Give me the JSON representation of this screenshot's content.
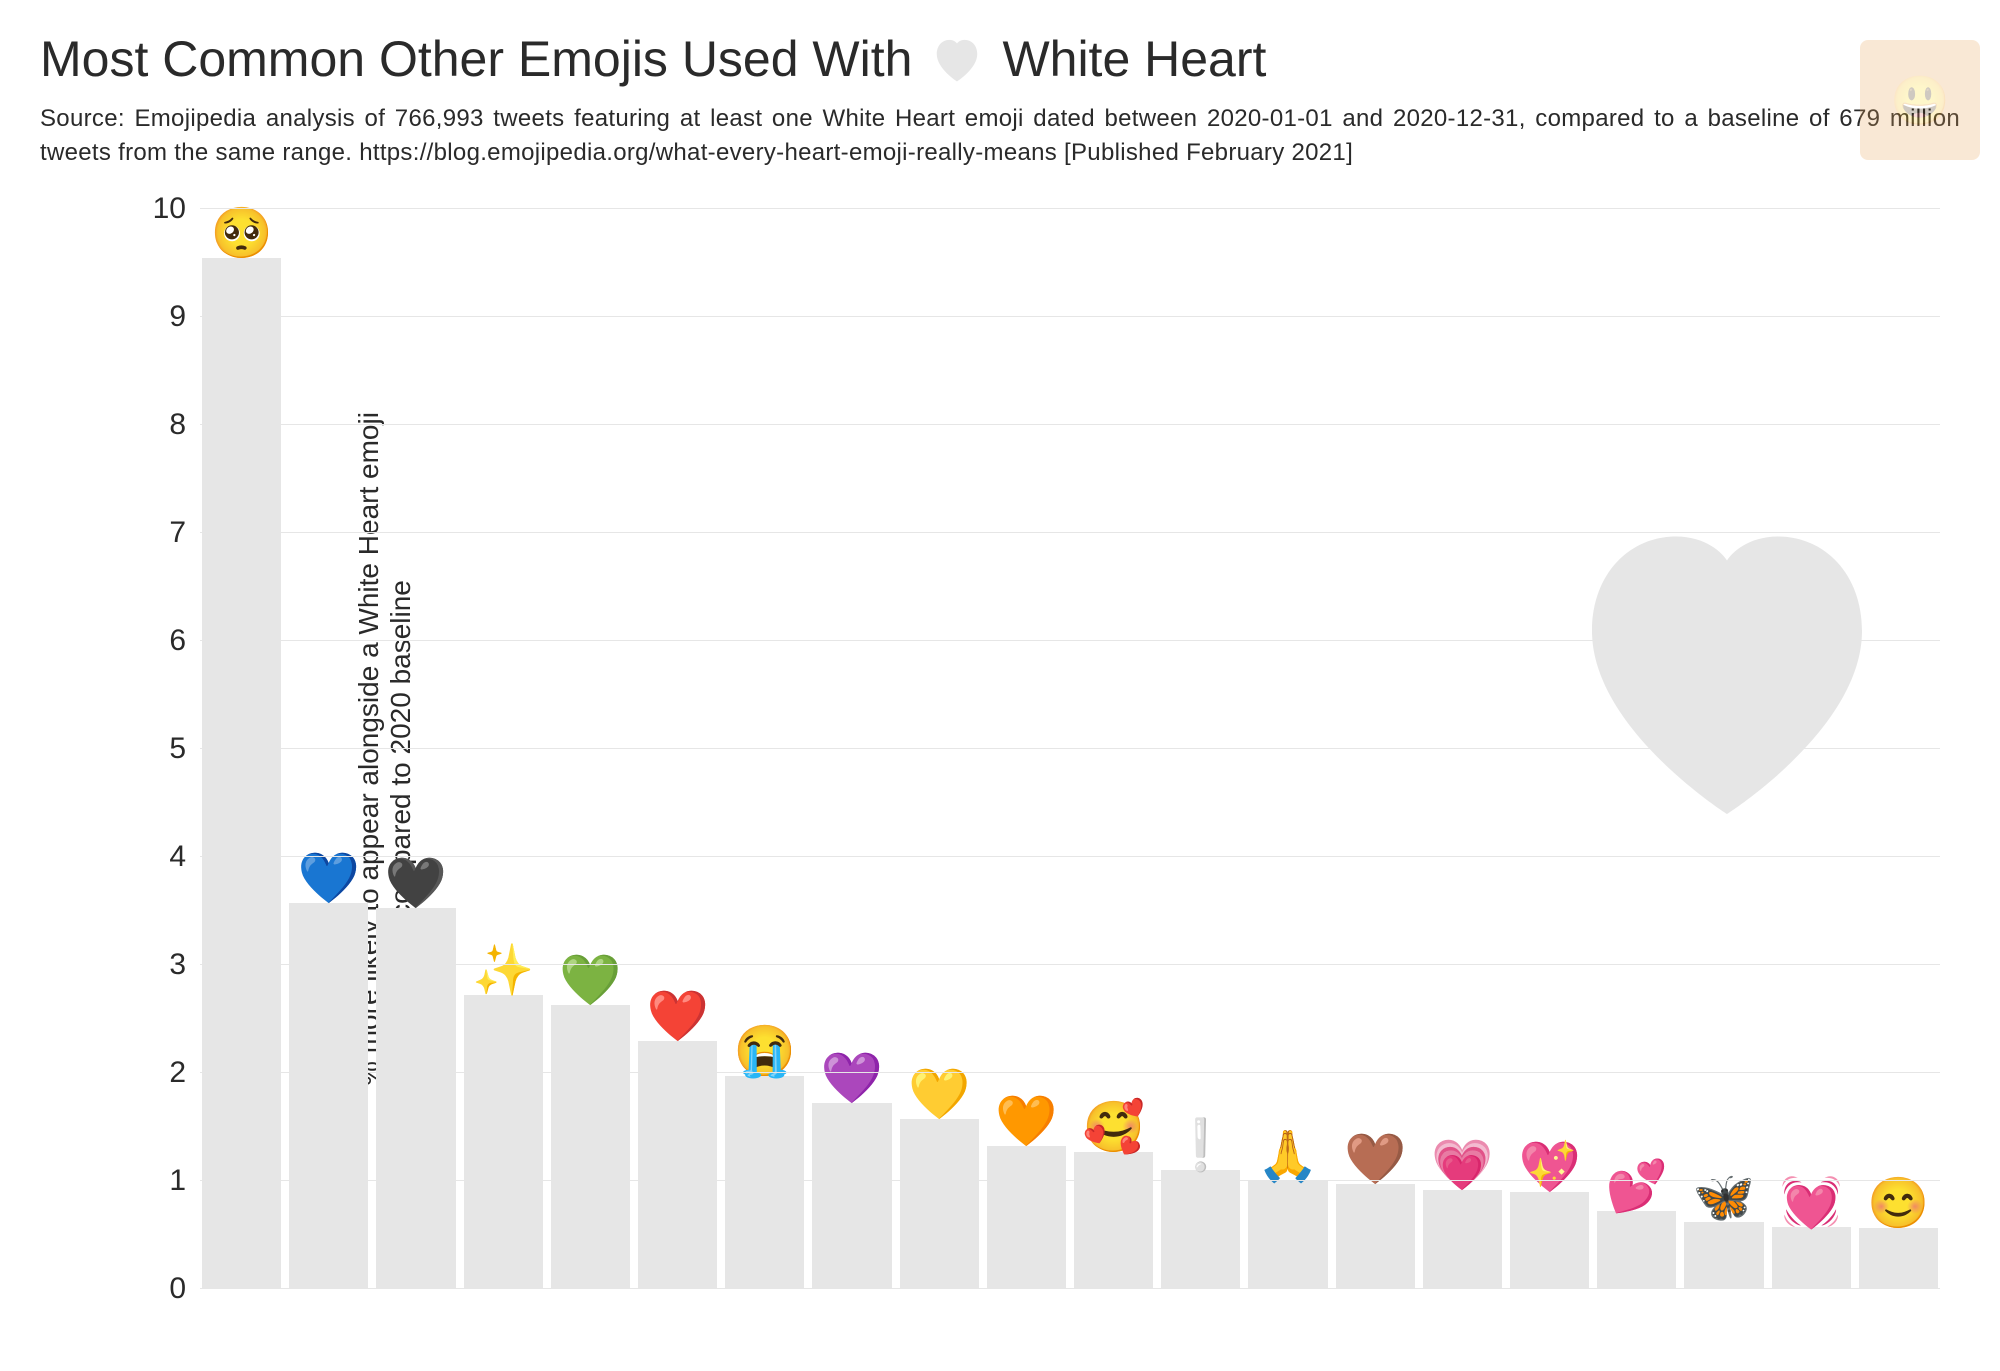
{
  "title_pre": "Most Common Other Emojis Used With",
  "title_post": "White Heart",
  "title_heart_color": "#e6e6e6",
  "source": "Source: Emojipedia analysis of 766,993 tweets featuring at least one White Heart emoji dated between 2020-01-01 and 2020-12-31, compared to a baseline of 679 million tweets from the same range. https://blog.emojipedia.org/what-every-heart-emoji-really-means [Published February 2021]",
  "y_axis_label": "% more likely to appear alongside a White Heart emoji\ncompared to 2020 baseline",
  "chart": {
    "type": "bar",
    "ylim": [
      0,
      10
    ],
    "ytick_step": 1,
    "yticks": [
      0,
      1,
      2,
      3,
      4,
      5,
      6,
      7,
      8,
      9,
      10
    ],
    "bar_color": "#e6e6e6",
    "grid_color": "#e6e6e6",
    "background_color": "#ffffff",
    "tick_fontsize": 30,
    "axis_label_fontsize": 28,
    "emoji_fontsize": 50,
    "title_fontsize": 50,
    "source_fontsize": 24,
    "bars": [
      {
        "emoji": "🥺",
        "value": 9.55,
        "name": "pleading-face"
      },
      {
        "emoji": "💙",
        "value": 3.58,
        "name": "blue-heart"
      },
      {
        "emoji": "🖤",
        "value": 3.53,
        "name": "black-heart"
      },
      {
        "emoji": "✨",
        "value": 2.72,
        "name": "sparkles"
      },
      {
        "emoji": "💚",
        "value": 2.63,
        "name": "green-heart"
      },
      {
        "emoji": "❤️",
        "value": 2.3,
        "name": "red-heart"
      },
      {
        "emoji": "😭",
        "value": 1.97,
        "name": "loudly-crying-face"
      },
      {
        "emoji": "💜",
        "value": 1.72,
        "name": "purple-heart"
      },
      {
        "emoji": "💛",
        "value": 1.58,
        "name": "yellow-heart"
      },
      {
        "emoji": "🧡",
        "value": 1.33,
        "name": "orange-heart"
      },
      {
        "emoji": "🥰",
        "value": 1.27,
        "name": "smiling-hearts"
      },
      {
        "emoji": "❕",
        "value": 1.1,
        "name": "white-exclamation"
      },
      {
        "emoji": "🙏",
        "value": 1.0,
        "name": "folded-hands"
      },
      {
        "emoji": "🤎",
        "value": 0.97,
        "name": "brown-heart"
      },
      {
        "emoji": "💗",
        "value": 0.92,
        "name": "growing-heart"
      },
      {
        "emoji": "💖",
        "value": 0.9,
        "name": "sparkling-heart"
      },
      {
        "emoji": "💕",
        "value": 0.72,
        "name": "two-hearts"
      },
      {
        "emoji": "🦋",
        "value": 0.62,
        "name": "butterfly"
      },
      {
        "emoji": "💓",
        "value": 0.58,
        "name": "beating-heart"
      },
      {
        "emoji": "😊",
        "value": 0.57,
        "name": "smiling-blush"
      }
    ]
  },
  "decor": {
    "big_heart_color": "#e6e6e6",
    "corner_badge_emoji": "😃"
  }
}
